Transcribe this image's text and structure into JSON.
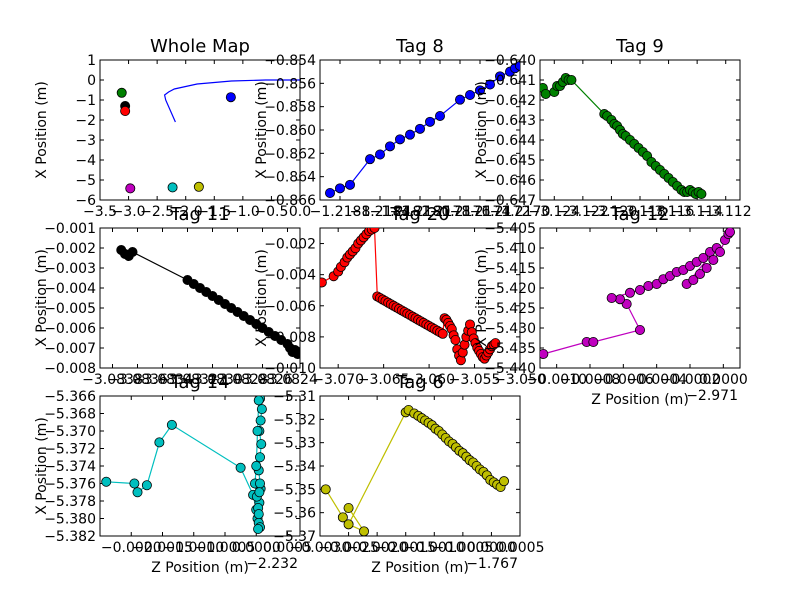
{
  "chart_data": [
    {
      "type": "scatter",
      "title": "Whole Map",
      "xlabel": "",
      "ylabel": "X Position (m)",
      "xticks": [
        "−3.5",
        "−3.0",
        "−2.5",
        "−2.0",
        "−1.5",
        "−1.0",
        "−0.5",
        "0.0"
      ],
      "yticks": [
        "1",
        "0",
        "−1",
        "−2",
        "−3",
        "−4",
        "−5",
        "−6"
      ],
      "xlim": [
        -3.5,
        0.0
      ],
      "ylim": [
        -6,
        1
      ],
      "series": [
        {
          "color": "#0000ff",
          "mode": "line",
          "x": [
            -2.18,
            -2.35,
            -2.37,
            -2.3,
            -2.2,
            -1.8,
            -1.2,
            -0.6,
            0.0
          ],
          "y": [
            -2.1,
            -1.0,
            -0.75,
            -0.6,
            -0.45,
            -0.2,
            -0.05,
            0.0,
            0.0
          ]
        },
        {
          "color": "#0000ff",
          "mode": "markers",
          "x": [
            -1.21
          ],
          "y": [
            -0.86
          ]
        },
        {
          "color": "#008000",
          "mode": "markers",
          "x": [
            -3.12
          ],
          "y": [
            -0.64
          ]
        },
        {
          "color": "#000000",
          "mode": "markers",
          "x": [
            -3.06
          ],
          "y": [
            -1.3
          ]
        },
        {
          "color": "#ff0000",
          "mode": "markers",
          "x": [
            -3.06
          ],
          "y": [
            -1.55
          ]
        },
        {
          "color": "#bf00bf",
          "mode": "markers",
          "x": [
            -2.97
          ],
          "y": [
            -5.42
          ]
        },
        {
          "color": "#00bfbf",
          "mode": "markers",
          "x": [
            -2.23
          ],
          "y": [
            -5.37
          ]
        },
        {
          "color": "#bfbf00",
          "mode": "markers",
          "x": [
            -1.77
          ],
          "y": [
            -5.34
          ]
        }
      ]
    },
    {
      "type": "scatter",
      "title": "Tag 8",
      "xlabel": "",
      "ylabel": "X Position (m)",
      "xticks": [
        "−1.2188",
        "−1.2184",
        "−1.2182",
        "−1.2180",
        "−1.2178",
        "−1.2176",
        "−1.2174",
        "−1.2172",
        "−1.2170"
      ],
      "yticks": [
        "−0.854",
        "−0.856",
        "−0.858",
        "−0.860",
        "−0.862",
        "−0.864",
        "−0.866"
      ],
      "xlim": [
        -1.219,
        -1.217
      ],
      "ylim": [
        -0.866,
        -0.854
      ],
      "series": [
        {
          "color": "#0000ff",
          "mode": "line+markers",
          "x": [
            -1.2189,
            -1.2188,
            -1.2187,
            -1.2185,
            -1.2184,
            -1.2183,
            -1.2182,
            -1.2181,
            -1.218,
            -1.2179,
            -1.2178,
            -1.2176,
            -1.2175,
            -1.2174,
            -1.2173,
            -1.2172,
            -1.2171,
            -1.21705,
            -1.217
          ],
          "y": [
            -0.8654,
            -0.865,
            -0.8647,
            -0.8625,
            -0.8621,
            -0.8614,
            -0.8608,
            -0.8604,
            -0.8599,
            -0.8593,
            -0.8588,
            -0.8574,
            -0.857,
            -0.8566,
            -0.8561,
            -0.8554,
            -0.855,
            -0.8547,
            -0.8545
          ]
        }
      ]
    },
    {
      "type": "scatter",
      "title": "Tag 9",
      "xlabel": "",
      "ylabel": "X Position (m)",
      "xticks": [
        "−3.124",
        "−3.122",
        "−3.120",
        "−3.118",
        "−3.116",
        "−3.114",
        "−3.112"
      ],
      "yticks": [
        "−0.640",
        "−0.641",
        "−0.642",
        "−0.643",
        "−0.644",
        "−0.645",
        "−0.646",
        "−0.647"
      ],
      "xlim": [
        -3.125,
        -3.111
      ],
      "ylim": [
        -0.647,
        -0.64
      ],
      "series": [
        {
          "color": "#008000",
          "mode": "line+markers",
          "x": [
            -3.1248,
            -3.1246,
            -3.124,
            -3.1238,
            -3.1236,
            -3.1234,
            -3.1232,
            -3.123,
            -3.1228,
            -3.1205,
            -3.1203,
            -3.12,
            -3.1198,
            -3.1196,
            -3.1194,
            -3.1192,
            -3.119,
            -3.1187,
            -3.1184,
            -3.1181,
            -3.1178,
            -3.1175,
            -3.1172,
            -3.1169,
            -3.1166,
            -3.1163,
            -3.116,
            -3.1157,
            -3.1154,
            -3.1151,
            -3.1149,
            -3.1147,
            -3.1145,
            -3.1143,
            -3.1141,
            -3.1139,
            -3.1137
          ],
          "y": [
            -0.6414,
            -0.6417,
            -0.6416,
            -0.6413,
            -0.6413,
            -0.6411,
            -0.6409,
            -0.641,
            -0.641,
            -0.6427,
            -0.6428,
            -0.643,
            -0.6432,
            -0.6433,
            -0.6435,
            -0.6437,
            -0.6438,
            -0.644,
            -0.6442,
            -0.6444,
            -0.6446,
            -0.6448,
            -0.6451,
            -0.6453,
            -0.6455,
            -0.6457,
            -0.6459,
            -0.6461,
            -0.6463,
            -0.6465,
            -0.6466,
            -0.6466,
            -0.6465,
            -0.6466,
            -0.6467,
            -0.6466,
            -0.6467
          ]
        }
      ]
    },
    {
      "type": "scatter",
      "title": "Tag 11",
      "xlabel": "",
      "ylabel": "X Position (m)",
      "xticks": [
        "−3.0838",
        "−3.0836",
        "−3.0834",
        "−3.0832",
        "−3.0830",
        "−3.0828",
        "−3.0826",
        "−3.0824"
      ],
      "yticks": [
        "−0.001",
        "−0.002",
        "−0.003",
        "−0.004",
        "−0.005",
        "−0.006",
        "−0.007",
        "−0.008"
      ],
      "xlim": [
        -3.0839,
        -3.0823
      ],
      "ylim": [
        -0.008,
        -0.001
      ],
      "series": [
        {
          "color": "#000000",
          "mode": "line+markers",
          "x": [
            -3.08373,
            -3.0837,
            -3.08367,
            -3.08364,
            -3.0832,
            -3.08315,
            -3.0831,
            -3.08305,
            -3.083,
            -3.08295,
            -3.0829,
            -3.08285,
            -3.0828,
            -3.08275,
            -3.0827,
            -3.08265,
            -3.0826,
            -3.08255,
            -3.0825,
            -3.08245,
            -3.0824,
            -3.08238,
            -3.08236,
            -3.08234,
            -3.08232,
            -3.0823
          ],
          "y": [
            -0.0021,
            -0.0023,
            -0.0024,
            -0.0022,
            -0.0036,
            -0.0038,
            -0.004,
            -0.0042,
            -0.0044,
            -0.0046,
            -0.0048,
            -0.005,
            -0.0052,
            -0.0054,
            -0.0056,
            -0.0058,
            -0.006,
            -0.0062,
            -0.0064,
            -0.0066,
            -0.0068,
            -0.007,
            -0.0072,
            -0.0071,
            -0.0073,
            -0.0072
          ]
        }
      ]
    },
    {
      "type": "scatter",
      "title": "Tag 20",
      "xlabel": "",
      "ylabel": "X Position (m)",
      "xticks": [
        "−3.070",
        "−3.065",
        "−3.060",
        "−3.055",
        "−3.050"
      ],
      "yticks": [
        "−0.002",
        "−0.004",
        "−0.006",
        "−0.008",
        "−0.010"
      ],
      "xlim": [
        -3.072,
        -3.05
      ],
      "ylim": [
        -0.01,
        -0.001
      ],
      "series": [
        {
          "color": "#ff0000",
          "mode": "line+markers",
          "x": [
            -3.0718,
            -3.0705,
            -3.07,
            -3.0697,
            -3.0693,
            -3.069,
            -3.0687,
            -3.0684,
            -3.0681,
            -3.0678,
            -3.0675,
            -3.0672,
            -3.0669,
            -3.0666,
            -3.0663,
            -3.066,
            -3.0657,
            -3.0654,
            -3.0651,
            -3.0648,
            -3.0645,
            -3.0642,
            -3.0639,
            -3.0636,
            -3.0633,
            -3.063,
            -3.0627,
            -3.0624,
            -3.0621,
            -3.0618,
            -3.0615,
            -3.0612,
            -3.0609,
            -3.0606,
            -3.0603,
            -3.06,
            -3.0597,
            -3.0594,
            -3.0591,
            -3.0588,
            -3.0585,
            -3.0583,
            -3.0581,
            -3.0579,
            -3.0577,
            -3.0575,
            -3.0573,
            -3.0571,
            -3.0569,
            -3.0567,
            -3.0565,
            -3.0563,
            -3.0561,
            -3.0559,
            -3.0557,
            -3.0555,
            -3.0553,
            -3.0551,
            -3.0549,
            -3.0547,
            -3.0545,
            -3.0543,
            -3.0541,
            -3.0539,
            -3.0537,
            -3.0535,
            -3.0533,
            -3.0531,
            -3.0529,
            -3.0527
          ],
          "y": [
            -0.0045,
            -0.0041,
            -0.0038,
            -0.0035,
            -0.0032,
            -0.0029,
            -0.0027,
            -0.0025,
            -0.0023,
            -0.002,
            -0.0018,
            -0.0016,
            -0.0014,
            -0.0012,
            -0.0011,
            -0.001,
            -0.0054,
            -0.0055,
            -0.0056,
            -0.0057,
            -0.0058,
            -0.0059,
            -0.006,
            -0.0061,
            -0.0062,
            -0.0063,
            -0.0064,
            -0.0065,
            -0.0066,
            -0.0067,
            -0.0068,
            -0.0069,
            -0.007,
            -0.0071,
            -0.0072,
            -0.0073,
            -0.0074,
            -0.0075,
            -0.0076,
            -0.0077,
            -0.0078,
            -0.0068,
            -0.0069,
            -0.0071,
            -0.0073,
            -0.0075,
            -0.0079,
            -0.0082,
            -0.0088,
            -0.0092,
            -0.0095,
            -0.009,
            -0.0085,
            -0.008,
            -0.0076,
            -0.0072,
            -0.0077,
            -0.0081,
            -0.0084,
            -0.0087,
            -0.0089,
            -0.0091,
            -0.0093,
            -0.0094,
            -0.0092,
            -0.009,
            -0.0088,
            -0.0086,
            -0.0085,
            -0.0084
          ]
        }
      ]
    },
    {
      "type": "scatter",
      "title": "Tag 12",
      "xlabel": "Z Position (m)",
      "offset_label": "−2.971",
      "ylabel": "X Position (m)",
      "xticks": [
        "−0.0010",
        "−0.0008",
        "−0.0006",
        "−0.0004",
        "−0.0002",
        "0.0000"
      ],
      "yticks": [
        "−5.405",
        "−5.410",
        "−5.415",
        "−5.420",
        "−5.425",
        "−5.430",
        "−5.435",
        "−5.440"
      ],
      "xlim": [
        -0.0011,
        0.0001
      ],
      "ylim": [
        -5.44,
        -5.405
      ],
      "series": [
        {
          "color": "#bf00bf",
          "mode": "line+markers",
          "x": [
            -0.00108,
            -0.00082,
            -0.00078,
            -0.0005,
            -0.00058,
            -0.00062,
            -0.00067,
            -0.00056,
            -0.0005,
            -0.00045,
            -0.0004,
            -0.00036,
            -0.00032,
            -0.00028,
            -0.00024,
            -0.0002,
            -0.00016,
            -0.00012,
            -8e-05,
            -4e-05,
            -0.00022,
            -0.00018,
            -0.00014,
            -0.0001,
            -6e-05,
            -2e-05,
            1e-05,
            3e-05,
            4e-05
          ],
          "y": [
            -5.4365,
            -5.4335,
            -5.4335,
            -5.4305,
            -5.424,
            -5.4228,
            -5.4225,
            -5.4212,
            -5.4205,
            -5.4195,
            -5.419,
            -5.4178,
            -5.417,
            -5.416,
            -5.4155,
            -5.4145,
            -5.4135,
            -5.4125,
            -5.411,
            -5.41,
            -5.419,
            -5.418,
            -5.4165,
            -5.415,
            -5.413,
            -5.411,
            -5.408,
            -5.4065,
            -5.406
          ]
        }
      ]
    },
    {
      "type": "scatter",
      "title": "Tag 14",
      "xlabel": "Z Position (m)",
      "offset_label": "−2.232",
      "ylabel": "X Position (m)",
      "xticks": [
        "−0.0020",
        "−0.0015",
        "−0.0010",
        "−0.0005",
        "0.0000",
        "0.0005"
      ],
      "yticks": [
        "−5.366",
        "−5.368",
        "−5.370",
        "−5.372",
        "−5.374",
        "−5.376",
        "−5.378",
        "−5.380",
        "−5.382"
      ],
      "xlim": [
        -0.0025,
        0.0007
      ],
      "ylim": [
        -5.382,
        -5.366
      ],
      "series": [
        {
          "color": "#00bfbf",
          "mode": "line+markers",
          "x": [
            -0.0024,
            -0.00195,
            -0.0019,
            -0.00175,
            -0.00155,
            -0.00135,
            -0.00025,
            -5e-05,
            0.0,
            2e-05,
            4e-05,
            6e-05,
            3e-05,
            5e-05,
            7e-05,
            4e-05,
            6e-05,
            8e-05,
            5e-05,
            7e-05,
            9e-05,
            6e-05,
            4e-05,
            2e-05,
            0.0,
            -2e-05,
            1e-05,
            3e-05,
            4e-05,
            6e-05,
            5e-05
          ],
          "y": [
            -5.3758,
            -5.376,
            -5.377,
            -5.3762,
            -5.3713,
            -5.3693,
            -5.3742,
            -5.3773,
            -5.379,
            -5.38,
            -5.3805,
            -5.381,
            -5.3812,
            -5.3782,
            -5.3766,
            -5.3745,
            -5.373,
            -5.3715,
            -5.37,
            -5.3688,
            -5.3675,
            -5.3663,
            -5.3665,
            -5.37,
            -5.374,
            -5.376,
            -5.3775,
            -5.3788,
            -5.3795,
            -5.376,
            -5.377
          ]
        }
      ]
    },
    {
      "type": "scatter",
      "title": "Tag 6",
      "xlabel": "Z Position (m)",
      "offset_label": "−1.767",
      "ylabel": "",
      "xticks": [
        "−0.0030",
        "−0.0025",
        "−0.0020",
        "−0.0015",
        "−0.0010",
        "−0.0005",
        "0.0000",
        "0.0005"
      ],
      "yticks": [
        "−5.31",
        "−5.32",
        "−5.33",
        "−5.34",
        "−5.35",
        "−5.36",
        "−5.37"
      ],
      "xlim": [
        -0.003,
        0.0005
      ],
      "ylim": [
        -5.37,
        -5.31
      ],
      "series": [
        {
          "color": "#bfbf00",
          "mode": "line+markers",
          "x": [
            -0.0029,
            -0.0026,
            -0.0025,
            -0.00223,
            -0.0025,
            -0.0015,
            -0.00145,
            -0.00135,
            -0.00128,
            -0.00122,
            -0.00116,
            -0.0011,
            -0.00104,
            -0.00098,
            -0.00092,
            -0.00086,
            -0.0008,
            -0.00074,
            -0.00068,
            -0.00062,
            -0.00056,
            -0.0005,
            -0.00044,
            -0.00038,
            -0.00032,
            -0.00026,
            -0.0002,
            -0.00014,
            -8e-05,
            -2e-05,
            4e-05,
            0.0001,
            0.00016,
            0.00022
          ],
          "y": [
            -5.35,
            -5.362,
            -5.358,
            -5.368,
            -5.365,
            -5.317,
            -5.316,
            -5.3175,
            -5.3185,
            -5.3195,
            -5.3205,
            -5.3215,
            -5.3225,
            -5.324,
            -5.325,
            -5.3265,
            -5.328,
            -5.3295,
            -5.3305,
            -5.332,
            -5.3335,
            -5.3345,
            -5.336,
            -5.3375,
            -5.3385,
            -5.34,
            -5.3415,
            -5.3425,
            -5.344,
            -5.346,
            -5.347,
            -5.348,
            -5.349,
            -5.3465
          ]
        }
      ]
    }
  ]
}
